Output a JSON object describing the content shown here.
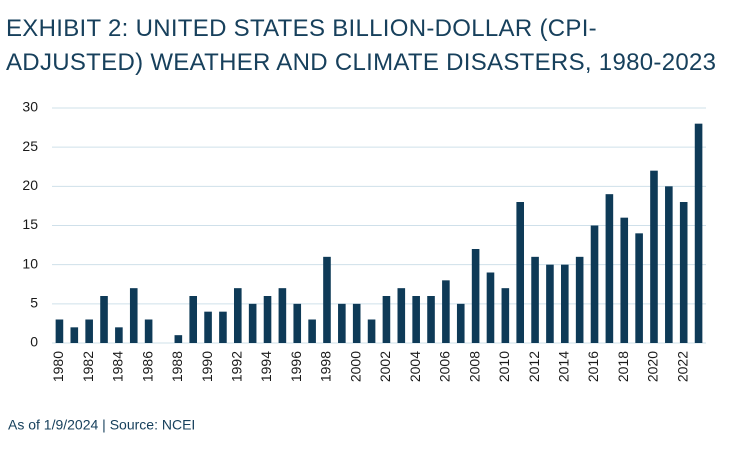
{
  "chart_data": {
    "type": "bar",
    "title": [
      "EXHIBIT 2: UNITED STATES BILLION-DOLLAR (CPI-",
      "ADJUSTED) WEATHER AND CLIMATE DISASTERS, 1980-2023"
    ],
    "categories": [
      "1980",
      null,
      "1982",
      null,
      "1984",
      null,
      "1986",
      null,
      "1988",
      null,
      "1990",
      null,
      "1992",
      null,
      "1994",
      null,
      "1996",
      null,
      "1998",
      null,
      "2000",
      null,
      "2002",
      null,
      "2004",
      null,
      "2006",
      null,
      "2008",
      null,
      "2010",
      null,
      "2012",
      null,
      "2014",
      null,
      "2016",
      null,
      "2018",
      null,
      "2020",
      null,
      "2022",
      null
    ],
    "values": [
      3,
      2,
      3,
      6,
      2,
      7,
      3,
      0,
      1,
      6,
      4,
      4,
      7,
      5,
      6,
      7,
      5,
      3,
      11,
      5,
      5,
      3,
      6,
      7,
      6,
      6,
      8,
      5,
      12,
      9,
      7,
      18,
      11,
      10,
      10,
      11,
      15,
      19,
      16,
      14,
      22,
      20,
      18,
      28
    ],
    "color": "#0e3a57",
    "ylim": [
      0,
      30
    ],
    "yticks": [
      0,
      5,
      10,
      15,
      20,
      25,
      30
    ],
    "grid": true,
    "source": "As of 1/9/2024 | Source: NCEI"
  }
}
